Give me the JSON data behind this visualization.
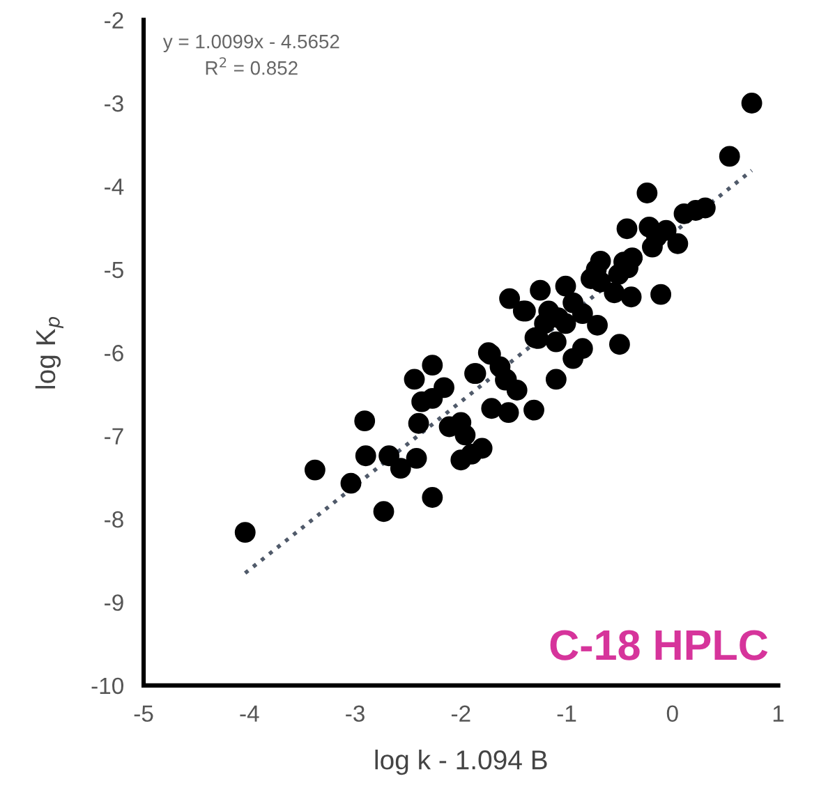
{
  "chart_data": {
    "type": "scatter",
    "xlabel": "log k - 1.094 B",
    "ylabel": "log K$_{p}$",
    "xlim": [
      -5,
      1
    ],
    "ylim": [
      -10,
      -2
    ],
    "xticks": [
      -5,
      -4,
      -3,
      -2,
      -1,
      0,
      1
    ],
    "yticks": [
      -10,
      -9,
      -8,
      -7,
      -6,
      -5,
      -4,
      -3,
      -2
    ],
    "grid": false,
    "legend": false,
    "marker": "circle",
    "annotations": [
      "y = 1.0099x - 4.5652",
      "R$^{2}$ = 0.852",
      "C-18 HPLC"
    ],
    "series": [
      {
        "color": "#000000",
        "x": [
          -4.04,
          -3.38,
          -3.04,
          -2.91,
          -2.9,
          -2.73,
          -2.68,
          -2.57,
          -2.42,
          -2.4,
          -2.27,
          -2.44,
          -2.27,
          -2.37,
          -2.27,
          -2.16,
          -2.11,
          -2.0,
          -1.96,
          -2.0,
          -1.9,
          -1.8,
          -1.86,
          -1.72,
          -1.63,
          -1.57,
          -1.47,
          -1.71,
          -1.55,
          -1.31,
          -1.39,
          -1.27,
          -1.1,
          0.75,
          0.54,
          -0.24,
          0.11,
          0.22,
          0.31,
          0.05,
          -0.43,
          -0.22,
          -0.15,
          -0.06,
          -0.19,
          -0.38,
          -0.46,
          -0.68,
          -0.72,
          -0.77,
          -0.68,
          -0.51,
          -0.42,
          -0.55,
          -0.39,
          -0.11,
          -1.01,
          -1.25,
          -1.54,
          -1.41,
          -1.17,
          -0.94,
          -0.85,
          -1.08,
          -1.21,
          -1.01,
          -0.71,
          -1.3,
          -1.1,
          -0.94,
          -0.85,
          -0.5,
          -1.74,
          -1.87,
          -1.58
        ],
        "values": [
          -8.16,
          -7.41,
          -7.57,
          -6.82,
          -7.24,
          -7.91,
          -7.24,
          -7.39,
          -7.27,
          -6.85,
          -7.74,
          -6.32,
          -6.15,
          -6.59,
          -6.55,
          -6.42,
          -6.89,
          -6.84,
          -6.99,
          -7.29,
          -7.22,
          -7.15,
          -6.25,
          -6.02,
          -6.17,
          -6.32,
          -6.45,
          -6.67,
          -6.72,
          -6.69,
          -5.5,
          -5.83,
          -6.32,
          -3.0,
          -3.64,
          -4.08,
          -4.33,
          -4.29,
          -4.26,
          -4.69,
          -4.51,
          -4.49,
          -4.61,
          -4.53,
          -4.73,
          -4.86,
          -4.91,
          -4.9,
          -5.0,
          -5.11,
          -5.15,
          -5.06,
          -4.98,
          -5.28,
          -5.33,
          -5.3,
          -5.2,
          -5.25,
          -5.35,
          -5.5,
          -5.5,
          -5.4,
          -5.53,
          -5.58,
          -5.65,
          -5.65,
          -5.67,
          -5.82,
          -5.87,
          -6.07,
          -5.95,
          -5.9,
          -6.0,
          -6.25,
          -6.33
        ]
      },
      {
        "type": "line",
        "color": "#505a6a",
        "line_style": "dotted",
        "marker": "none",
        "x": [
          -4.04,
          0.75
        ],
        "values": [
          -8.65,
          -3.81
        ]
      }
    ]
  }
}
